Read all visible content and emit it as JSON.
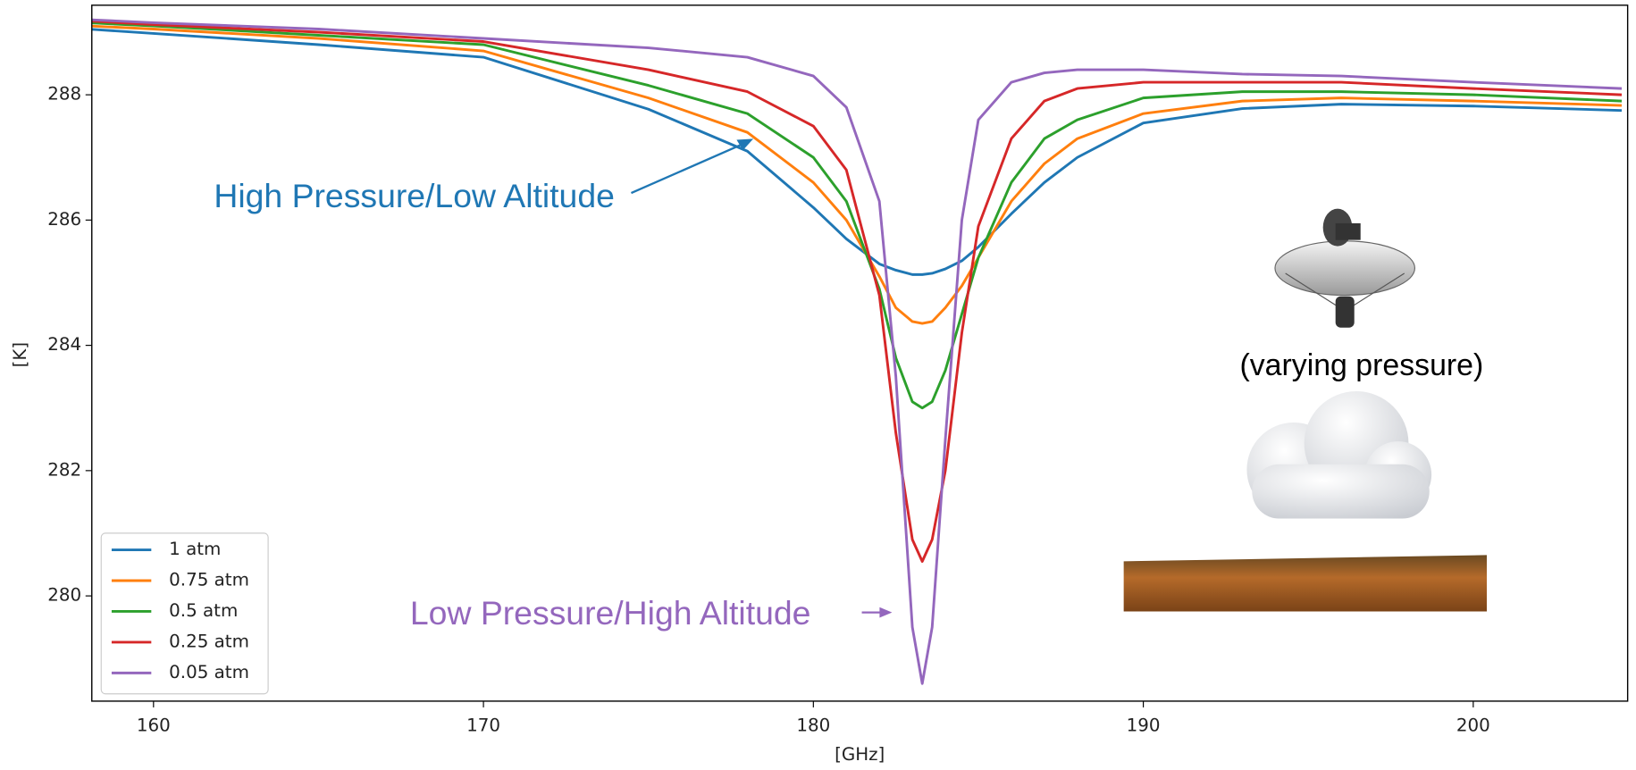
{
  "chart_data": {
    "type": "line",
    "xlabel": "[GHz]",
    "ylabel": "[K]",
    "x": [
      158,
      160,
      165,
      170,
      175,
      178,
      180,
      181,
      182,
      182.5,
      183,
      183.3,
      183.6,
      184,
      184.5,
      185,
      186,
      187,
      188,
      190,
      193,
      196,
      200,
      204.5
    ],
    "series": [
      {
        "name": "1 atm",
        "color": "#1f77b4",
        "values": [
          289.05,
          288.98,
          288.8,
          288.6,
          287.77,
          287.1,
          286.2,
          285.7,
          285.3,
          285.2,
          285.13,
          285.13,
          285.15,
          285.22,
          285.35,
          285.57,
          286.1,
          286.6,
          287.0,
          287.55,
          287.78,
          287.85,
          287.82,
          287.75
        ]
      },
      {
        "name": "0.75 atm",
        "color": "#ff7f0e",
        "values": [
          289.1,
          289.05,
          288.9,
          288.7,
          287.95,
          287.4,
          286.6,
          286.0,
          285.1,
          284.6,
          284.38,
          284.35,
          284.38,
          284.6,
          284.95,
          285.4,
          286.3,
          286.9,
          287.3,
          287.7,
          287.9,
          287.95,
          287.9,
          287.83
        ]
      },
      {
        "name": "0.5 atm",
        "color": "#2ca02c",
        "values": [
          289.15,
          289.1,
          288.95,
          288.8,
          288.15,
          287.7,
          287.0,
          286.3,
          284.9,
          283.8,
          283.1,
          283.0,
          283.1,
          283.6,
          284.5,
          285.4,
          286.6,
          287.3,
          287.6,
          287.95,
          288.05,
          288.05,
          288.0,
          287.9
        ]
      },
      {
        "name": "0.25 atm",
        "color": "#d62728",
        "values": [
          289.18,
          289.12,
          289.0,
          288.85,
          288.4,
          288.05,
          287.5,
          286.8,
          284.8,
          282.6,
          280.9,
          280.55,
          280.9,
          282.0,
          284.2,
          285.9,
          287.3,
          287.9,
          288.1,
          288.2,
          288.2,
          288.2,
          288.1,
          288.0
        ]
      },
      {
        "name": "0.05 atm",
        "color": "#9467bd",
        "values": [
          289.2,
          289.15,
          289.05,
          288.9,
          288.75,
          288.6,
          288.3,
          287.8,
          286.3,
          283.5,
          279.5,
          278.6,
          279.5,
          282.5,
          286.0,
          287.6,
          288.2,
          288.35,
          288.4,
          288.4,
          288.33,
          288.3,
          288.2,
          288.1
        ]
      }
    ],
    "xlim": [
      158.13,
      204.68
    ],
    "ylim": [
      278.32,
      289.43
    ],
    "xticks": [
      160,
      170,
      180,
      190,
      200
    ],
    "yticks": [
      280,
      282,
      284,
      286,
      288
    ],
    "legend": "lower left",
    "annotations": [
      "High Pressure/Low Altitude",
      "Low Pressure/High Altitude",
      "(varying pressure)"
    ]
  }
}
